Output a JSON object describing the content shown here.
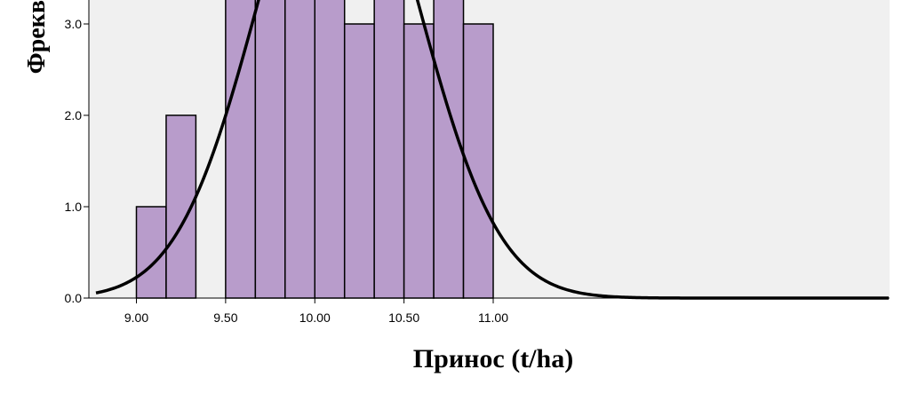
{
  "chart_data": {
    "type": "bar",
    "subtype": "histogram",
    "xlabel": "Принос (t/ha)",
    "ylabel": "Фрекв",
    "x_ticks": [
      "9.00",
      "9.50",
      "10.00",
      "10.50",
      "11.00"
    ],
    "y_ticks": [
      "0.0",
      "1.0",
      "2.0",
      "3.0"
    ],
    "bin_width": 0.1667,
    "bins": [
      {
        "start": 9.0,
        "end": 9.1667,
        "value": 1
      },
      {
        "start": 9.1667,
        "end": 9.3333,
        "value": 2
      },
      {
        "start": 9.3333,
        "end": 9.5,
        "value": 0
      },
      {
        "start": 9.5,
        "end": 9.6667,
        "value": 4
      },
      {
        "start": 9.6667,
        "end": 9.8333,
        "value": 4
      },
      {
        "start": 9.8333,
        "end": 10.0,
        "value": 4
      },
      {
        "start": 10.0,
        "end": 10.1667,
        "value": 4
      },
      {
        "start": 10.1667,
        "end": 10.3333,
        "value": 3
      },
      {
        "start": 10.3333,
        "end": 10.5,
        "value": 4
      },
      {
        "start": 10.5,
        "end": 10.6667,
        "value": 3
      },
      {
        "start": 10.6667,
        "end": 10.8333,
        "value": 4
      },
      {
        "start": 10.8333,
        "end": 11.0,
        "value": 3
      }
    ],
    "normal_curve": {
      "mean": 10.13,
      "sd": 0.45,
      "n": 36
    },
    "xlim": [
      8.89,
      11.11
    ],
    "ylim_visible": [
      0,
      3.3
    ],
    "colors": {
      "bar_fill": "#b89ccb",
      "bar_stroke": "#000000",
      "plot_background": "#f0f0f0",
      "curve": "#000000"
    },
    "grid": false
  }
}
